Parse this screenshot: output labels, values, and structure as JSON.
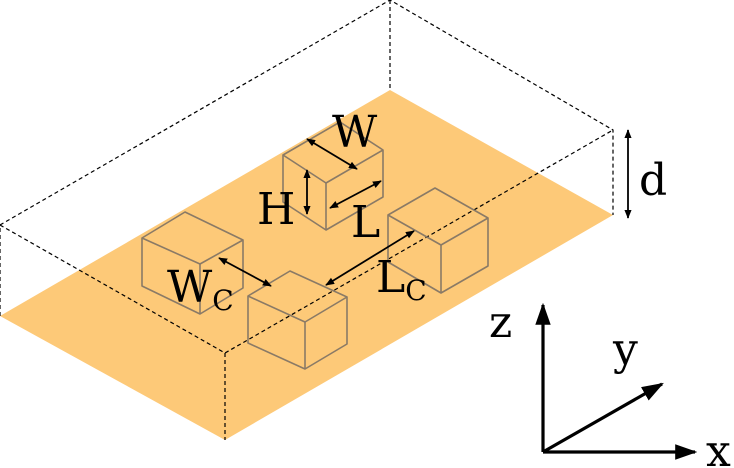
{
  "colors": {
    "substrate": "#fdc978",
    "box_edge": "#8a7a66",
    "line": "#000000",
    "background": "#ffffff"
  },
  "labels": {
    "width": "W",
    "length": "L",
    "height": "H",
    "depth": "d",
    "spacing_w_main": "W",
    "spacing_w_sub": "C",
    "spacing_l_main": "L",
    "spacing_l_sub": "C"
  },
  "axes": {
    "x": "x",
    "y": "y",
    "z": "z"
  }
}
